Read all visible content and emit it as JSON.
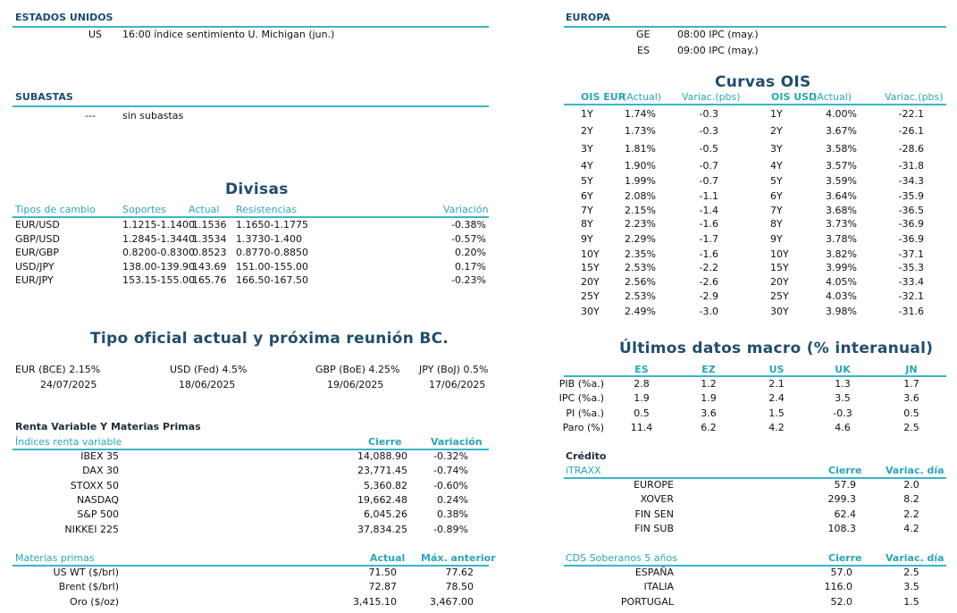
{
  "us": {
    "title": "ESTADOS UNIDOS",
    "rows": [
      {
        "country": "US",
        "text": "16:00 índice sentimiento U. Michigan (jun.)"
      }
    ]
  },
  "eu": {
    "title": "EUROPA",
    "rows": [
      {
        "country": "GE",
        "text": "08:00 IPC (may.)"
      },
      {
        "country": "ES",
        "text": "09:00 IPC (may.)"
      }
    ]
  },
  "auctions": {
    "title": "SUBASTAS",
    "dash": "---",
    "text": "sin subastas"
  },
  "fx": {
    "title": "Divisas",
    "headers": {
      "pair": "Tipos de cambio",
      "support": "Soportes",
      "current": "Actual",
      "resistance": "Resistencias",
      "change": "Variación"
    },
    "rows": [
      {
        "pair": "EUR/USD",
        "support": "1.1215-1.1400",
        "current": "1.1536",
        "resistance": "1.1650-1.1775",
        "change": "-0.38%"
      },
      {
        "pair": "GBP/USD",
        "support": "1.2845-1.3440",
        "current": "1.3534",
        "resistance": "1.3730-1.400",
        "change": "-0.57%"
      },
      {
        "pair": "EUR/GBP",
        "support": "0.8200-0.8300",
        "current": "0.8523",
        "resistance": "0.8770-0.8850",
        "change": "0.20%"
      },
      {
        "pair": "USD/JPY",
        "support": "138.00-139.90",
        "current": "143.69",
        "resistance": "151.00-155.00",
        "change": "0.17%"
      },
      {
        "pair": "EUR/JPY",
        "support": "153.15-155.00",
        "current": "165.76",
        "resistance": "166.50-167.50",
        "change": "-0.23%"
      }
    ]
  },
  "cb": {
    "title": "Tipo oficial actual y próxima reunión BC.",
    "items": [
      {
        "rate": "EUR (BCE) 2.15%",
        "date": "24/07/2025"
      },
      {
        "rate": "USD (Fed) 4.5%",
        "date": "18/06/2025"
      },
      {
        "rate": "GBP (BoE) 4.25%",
        "date": "19/06/2025"
      },
      {
        "rate": "JPY (BoJ) 0.5%",
        "date": "17/06/2025"
      }
    ]
  },
  "equity": {
    "title": "Renta Variable Y Materias Primas",
    "headers": {
      "name": "Índices renta variable",
      "close": "Cierre",
      "change": "Variación"
    },
    "rows": [
      {
        "name": "IBEX 35",
        "close": "14,088.90",
        "change": "-0.32%"
      },
      {
        "name": "DAX 30",
        "close": "23,771.45",
        "change": "-0.74%"
      },
      {
        "name": "STOXX 50",
        "close": "5,360.82",
        "change": "-0.60%"
      },
      {
        "name": "NASDAQ",
        "close": "19,662.48",
        "change": "0.24%"
      },
      {
        "name": "S&P 500",
        "close": "6,045.26",
        "change": "0.38%"
      },
      {
        "name": "NIKKEI 225",
        "close": "37,834.25",
        "change": "-0.89%"
      }
    ]
  },
  "commodities": {
    "headers": {
      "name": "Materias primas",
      "current": "Actual",
      "prev_max": "Máx. anterior"
    },
    "rows": [
      {
        "name": "US WT ($/brl)",
        "current": "71.50",
        "prev_max": "77.62"
      },
      {
        "name": "Brent ($/brl)",
        "current": "72.87",
        "prev_max": "78.50"
      },
      {
        "name": "Oro ($/oz)",
        "current": "3,415.10",
        "prev_max": "3,467.00"
      }
    ]
  },
  "ois": {
    "title": "Curvas OIS",
    "headers": {
      "eur_label": "OIS EUR",
      "eur_sub": "(Actual)",
      "eur_var": "Variac.(pbs)",
      "usd_label": "OIS USD",
      "usd_sub": "(Actual)",
      "usd_var": "Variac.(pbs)"
    },
    "rows": [
      {
        "t1": "1Y",
        "e": "1.74%",
        "ev": "-0.3",
        "t2": "1Y",
        "u": "4.00%",
        "uv": "-22.1"
      },
      {
        "t1": "2Y",
        "e": "1.73%",
        "ev": "-0.3",
        "t2": "2Y",
        "u": "3.67%",
        "uv": "-26.1"
      },
      {
        "t1": "3Y",
        "e": "1.81%",
        "ev": "-0.5",
        "t2": "3Y",
        "u": "3.58%",
        "uv": "-28.6"
      },
      {
        "t1": "4Y",
        "e": "1.90%",
        "ev": "-0.7",
        "t2": "4Y",
        "u": "3.57%",
        "uv": "-31.8"
      },
      {
        "t1": "5Y",
        "e": "1.99%",
        "ev": "-0.7",
        "t2": "5Y",
        "u": "3.59%",
        "uv": "-34.3"
      },
      {
        "t1": "6Y",
        "e": "2.08%",
        "ev": "-1.1",
        "t2": "6Y",
        "u": "3.64%",
        "uv": "-35.9"
      },
      {
        "t1": "7Y",
        "e": "2.15%",
        "ev": "-1.4",
        "t2": "7Y",
        "u": "3.68%",
        "uv": "-36.5"
      },
      {
        "t1": "8Y",
        "e": "2.23%",
        "ev": "-1.6",
        "t2": "8Y",
        "u": "3.73%",
        "uv": "-36.9"
      },
      {
        "t1": "9Y",
        "e": "2.29%",
        "ev": "-1.7",
        "t2": "9Y",
        "u": "3.78%",
        "uv": "-36.9"
      },
      {
        "t1": "10Y",
        "e": "2.35%",
        "ev": "-1.6",
        "t2": "10Y",
        "u": "3.82%",
        "uv": "-37.1"
      },
      {
        "t1": "15Y",
        "e": "2.53%",
        "ev": "-2.2",
        "t2": "15Y",
        "u": "3.99%",
        "uv": "-35.3"
      },
      {
        "t1": "20Y",
        "e": "2.56%",
        "ev": "-2.6",
        "t2": "20Y",
        "u": "4.05%",
        "uv": "-33.4"
      },
      {
        "t1": "25Y",
        "e": "2.53%",
        "ev": "-2.9",
        "t2": "25Y",
        "u": "4.03%",
        "uv": "-32.1"
      },
      {
        "t1": "30Y",
        "e": "2.49%",
        "ev": "-3.0",
        "t2": "30Y",
        "u": "3.98%",
        "uv": "-31.6"
      }
    ]
  },
  "macro": {
    "title": "Últimos datos macro (% interanual)",
    "countries": [
      "ES",
      "EZ",
      "US",
      "UK",
      "JN"
    ],
    "rows": [
      {
        "label": "PIB (%a.)",
        "vals": [
          "2.8",
          "1.2",
          "2.1",
          "1.3",
          "1.7"
        ]
      },
      {
        "label": "IPC (%a.)",
        "vals": [
          "1.9",
          "1.9",
          "2.4",
          "3.5",
          "3.6"
        ]
      },
      {
        "label": "PI (%a.)",
        "vals": [
          "0.5",
          "3.6",
          "1.5",
          "-0.3",
          "0.5"
        ]
      },
      {
        "label": "Paro (%)",
        "vals": [
          "11.4",
          "6.2",
          "4.2",
          "4.6",
          "2.5"
        ]
      }
    ]
  },
  "credit": {
    "title": "Crédito",
    "itraxx_headers": {
      "name": "iTRAXX",
      "close": "Cierre",
      "change": "Variac. día"
    },
    "itraxx": [
      {
        "name": "EUROPE",
        "close": "57.9",
        "change": "2.0"
      },
      {
        "name": "XOVER",
        "close": "299.3",
        "change": "8.2"
      },
      {
        "name": "FIN SEN",
        "close": "62.4",
        "change": "2.2"
      },
      {
        "name": "FIN SUB",
        "close": "108.3",
        "change": "4.2"
      }
    ],
    "cds_headers": {
      "name": "CDS Soberanos 5 años",
      "close": "Cierre",
      "change": "Variac. día"
    },
    "cds": [
      {
        "name": "ESPAÑA",
        "close": "57.0",
        "change": "2.5"
      },
      {
        "name": "ITALIA",
        "close": "116.0",
        "change": "3.5"
      },
      {
        "name": "PORTUGAL",
        "close": "52.0",
        "change": "1.5"
      }
    ]
  }
}
